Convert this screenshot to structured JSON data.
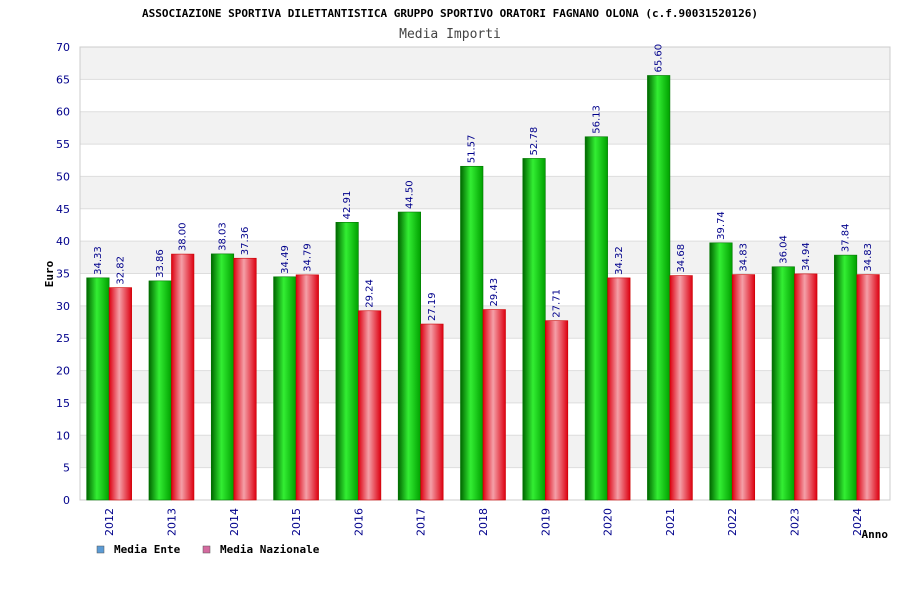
{
  "chart_data": {
    "type": "bar",
    "title": "ASSOCIAZIONE SPORTIVA DILETTANTISTICA GRUPPO SPORTIVO ORATORI FAGNANO OLONA (c.f.90031520126)",
    "subtitle": "Media Importi",
    "xlabel": "Anno",
    "ylabel": "Euro",
    "ylim": [
      0,
      70
    ],
    "yticks": [
      0,
      5,
      10,
      15,
      20,
      25,
      30,
      35,
      40,
      45,
      50,
      55,
      60,
      65,
      70
    ],
    "categories": [
      "2012",
      "2013",
      "2014",
      "2015",
      "2016",
      "2017",
      "2018",
      "2019",
      "2020",
      "2021",
      "2022",
      "2023",
      "2024"
    ],
    "series": [
      {
        "name": "Media Ente",
        "values": [
          34.33,
          33.86,
          38.03,
          34.49,
          42.91,
          44.5,
          51.57,
          52.78,
          56.13,
          65.6,
          39.74,
          36.04,
          37.84
        ],
        "labels": [
          "34.33",
          "33.86",
          "38.03",
          "34.49",
          "42.91",
          "44.50",
          "51.57",
          "52.78",
          "56.13",
          "65.60",
          "39.74",
          "36.04",
          "37.84"
        ],
        "color": "#00b800",
        "legend_color": "#5b9bd5"
      },
      {
        "name": "Media Nazionale",
        "values": [
          32.82,
          38.0,
          37.36,
          34.79,
          29.24,
          27.19,
          29.43,
          27.71,
          34.32,
          34.68,
          34.83,
          34.94,
          34.83
        ],
        "labels": [
          "32.82",
          "38.00",
          "37.36",
          "34.79",
          "29.24",
          "27.19",
          "29.43",
          "27.71",
          "34.32",
          "34.68",
          "34.83",
          "34.94",
          "34.83"
        ],
        "color": "#e8202a",
        "legend_color": "#d46a9f"
      }
    ],
    "grid": true,
    "legend_position": "bottom-left"
  }
}
